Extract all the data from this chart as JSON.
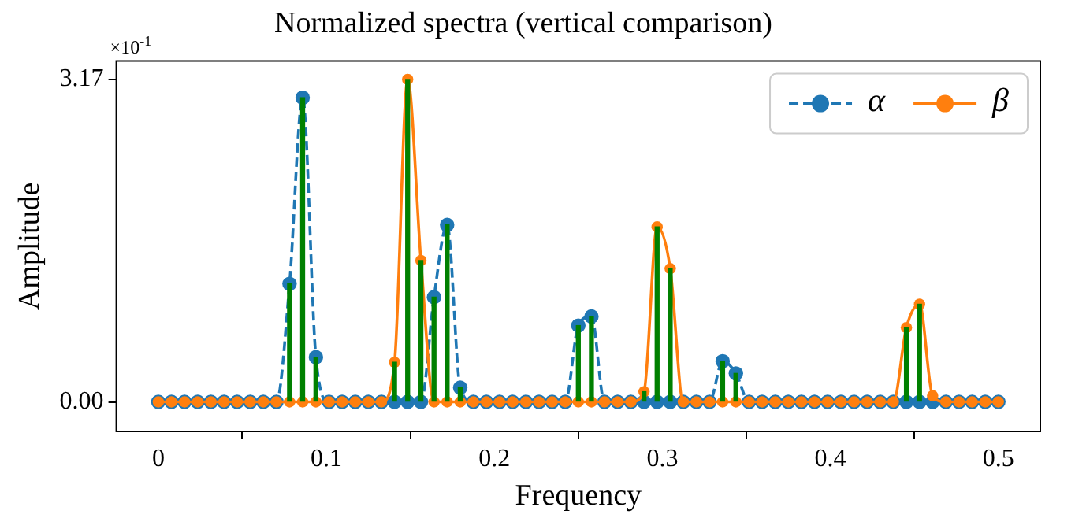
{
  "chart_data": {
    "type": "line",
    "title": "Normalized spectra (vertical comparison)",
    "xlabel": "Frequency",
    "ylabel": "Amplitude",
    "annotations": [
      "×10$^{-1}$"
    ],
    "x": [
      0,
      0.0078,
      0.0156,
      0.0234,
      0.0313,
      0.0391,
      0.0469,
      0.0547,
      0.0625,
      0.0703,
      0.0781,
      0.0859,
      0.0938,
      0.1016,
      0.1094,
      0.1172,
      0.125,
      0.1328,
      0.1406,
      0.1484,
      0.1563,
      0.1641,
      0.1719,
      0.1797,
      0.1875,
      0.1953,
      0.2031,
      0.2109,
      0.2188,
      0.2266,
      0.2344,
      0.2422,
      0.25,
      0.2578,
      0.2656,
      0.2734,
      0.2813,
      0.2891,
      0.2969,
      0.3047,
      0.3125,
      0.3203,
      0.3281,
      0.3359,
      0.3438,
      0.3516,
      0.3594,
      0.3672,
      0.375,
      0.3828,
      0.3906,
      0.3984,
      0.4063,
      0.4141,
      0.4219,
      0.4297,
      0.4375,
      0.4453,
      0.4531,
      0.4609,
      0.4688,
      0.4766,
      0.4844,
      0.4922,
      0.5
    ],
    "series": [
      {
        "type": "bar",
        "color": "#008000",
        "values": [
          null,
          null,
          null,
          null,
          null,
          null,
          null,
          null,
          null,
          null,
          1.16,
          2.99,
          0.44,
          null,
          null,
          null,
          null,
          null,
          0.39,
          3.17,
          1.39,
          1.03,
          1.74,
          0.14,
          null,
          null,
          null,
          null,
          null,
          null,
          null,
          null,
          0.75,
          0.84,
          null,
          null,
          null,
          0.1,
          1.72,
          1.31,
          null,
          null,
          null,
          0.4,
          0.28,
          null,
          null,
          null,
          null,
          null,
          null,
          null,
          null,
          null,
          null,
          null,
          null,
          0.73,
          0.96,
          null,
          null,
          null,
          null,
          null,
          null
        ]
      },
      {
        "name": "α",
        "color": "#1f77b4",
        "line_style": "dashed",
        "values": [
          0,
          0,
          0,
          0,
          0,
          0,
          0,
          0,
          0,
          0,
          1.16,
          2.99,
          0.44,
          0,
          0,
          0,
          0,
          0,
          0,
          0,
          0,
          1.03,
          1.74,
          0.14,
          0,
          0,
          0,
          0,
          0,
          0,
          0,
          0,
          0.75,
          0.84,
          0,
          0,
          0,
          0,
          0,
          0,
          0,
          0,
          0,
          0.4,
          0.28,
          0,
          0,
          0,
          0,
          0,
          0,
          0,
          0,
          0,
          0,
          0,
          0,
          0,
          0,
          0,
          0,
          0,
          0,
          0,
          0
        ]
      },
      {
        "name": "β",
        "color": "#ff7f0e",
        "line_style": "solid",
        "values": [
          0,
          0,
          0,
          0,
          0,
          0,
          0,
          0,
          0,
          0,
          0,
          0,
          0,
          0,
          0,
          0,
          0,
          0,
          0.39,
          3.17,
          1.39,
          0,
          0,
          0,
          0,
          0,
          0,
          0,
          0,
          0,
          0,
          0,
          0,
          0,
          0,
          0,
          0,
          0.1,
          1.72,
          1.31,
          0,
          0,
          0,
          0,
          0,
          0,
          0,
          0,
          0,
          0,
          0,
          0,
          0,
          0,
          0,
          0,
          0,
          0.73,
          0.96,
          0.06,
          0,
          0,
          0,
          0,
          0
        ]
      }
    ],
    "xlim": [
      -0.025,
      0.525
    ],
    "xticks": [
      0,
      0.1,
      0.2,
      0.3,
      0.4,
      0.5
    ],
    "ylim": [
      -0.29,
      3.35
    ],
    "yticks": [
      {
        "value": 0,
        "label": "0.00"
      },
      {
        "value": 3.17,
        "label": "3.17"
      }
    ],
    "grid": false,
    "legend": "top right",
    "marker": "circle"
  }
}
